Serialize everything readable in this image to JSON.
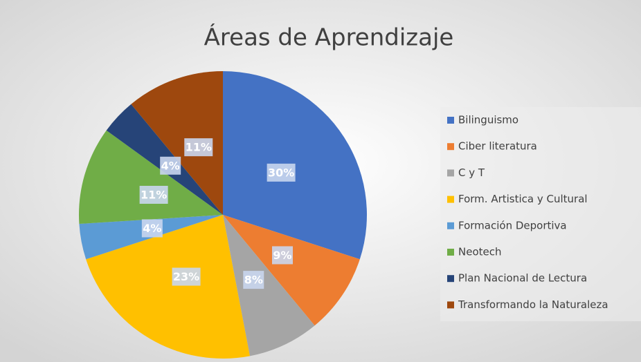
{
  "chart_data": {
    "type": "pie",
    "title": "Áreas de Aprendizaje",
    "categories": [
      "Bilinguismo",
      "Ciber literatura",
      "C y T",
      "Form. Artistica y Cultural",
      "Formación Deportiva",
      "Neotech",
      "Plan Nacional de Lectura",
      "Transformando la Naturaleza"
    ],
    "values": [
      30,
      9,
      8,
      23,
      4,
      11,
      4,
      11
    ],
    "value_labels": [
      "30%",
      "9%",
      "8%",
      "23%",
      "4%",
      "11%",
      "4%",
      "11%"
    ],
    "colors": [
      "#4472c4",
      "#ed7d31",
      "#a5a5a5",
      "#ffc000",
      "#5b9bd5",
      "#70ad47",
      "#264478",
      "#9e480e"
    ],
    "legend": "right"
  }
}
